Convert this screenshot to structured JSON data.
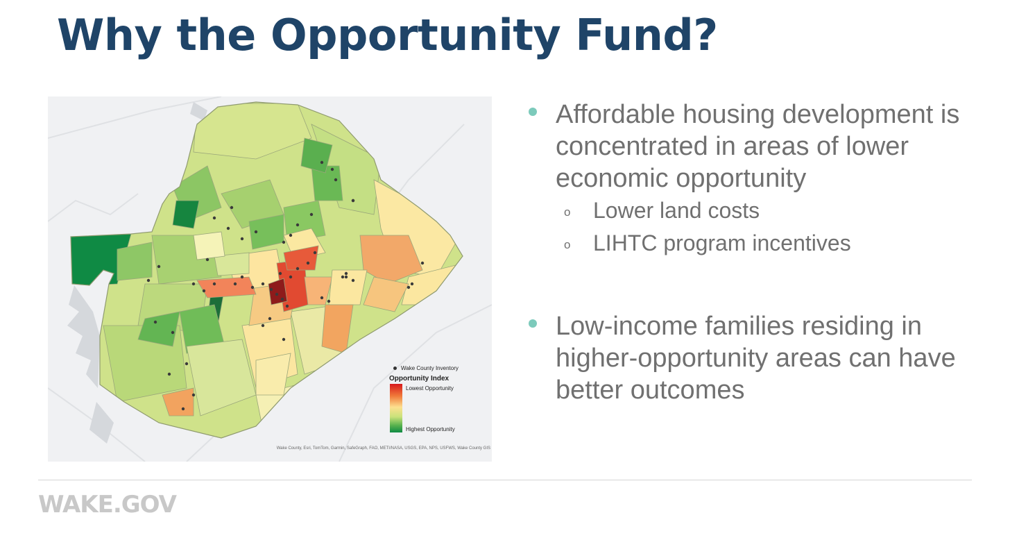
{
  "slide": {
    "title": "Why the Opportunity Fund?",
    "brand": "WAKE.GOV"
  },
  "map": {
    "legend": {
      "inventory_label": "Wake County Inventory",
      "title": "Opportunity Index",
      "low_label": "Lowest Opportunity",
      "high_label": "Highest Opportunity"
    },
    "attribution": "Wake County, Esri, TomTom, Garmin, SafeGraph, FAO, METI/NASA, USGS, EPA, NPS, USFWS, Wake County GIS",
    "colors": {
      "highest": "#0f8a44",
      "high": "#55b04d",
      "mid_high": "#a8d171",
      "mid": "#cfe28a",
      "neutral": "#fde08f",
      "low": "#f0a35a",
      "lowest": "#d7191c"
    }
  },
  "content": {
    "bullets": [
      {
        "text": "Affordable housing development is concentrated in areas of lower economic opportunity",
        "subitems": [
          {
            "marker": "o",
            "text": "Lower land costs"
          },
          {
            "marker": "o",
            "text": "LIHTC program incentives"
          }
        ]
      },
      {
        "text": "Low-income families residing in higher-opportunity areas can have better outcomes",
        "subitems": []
      }
    ]
  }
}
